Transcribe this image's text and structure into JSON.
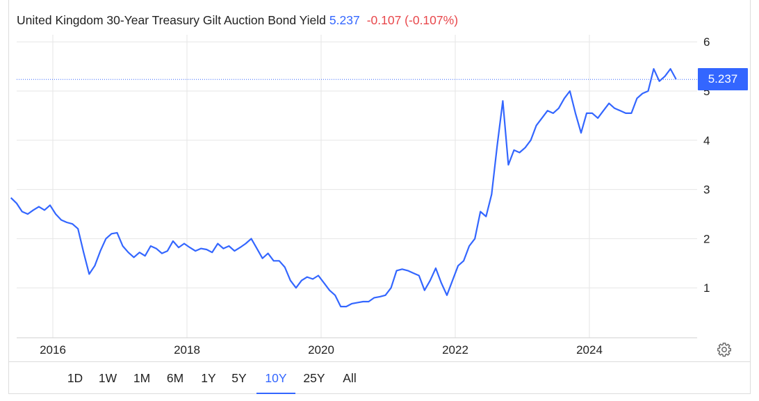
{
  "header": {
    "title": "United Kingdom 30-Year Treasury Gilt Auction Bond Yield",
    "last_value": "5.237",
    "change_text": "-0.107 (-0.107%)"
  },
  "last_badge": "5.237",
  "ranges": [
    "1D",
    "1W",
    "1M",
    "6M",
    "1Y",
    "5Y",
    "10Y",
    "25Y",
    "All"
  ],
  "active_range": "10Y",
  "colors": {
    "line": "#3366ff",
    "negative": "#e8474b",
    "grid": "#e6e6e6"
  },
  "icons": {
    "settings": "gear-icon"
  },
  "chart_data": {
    "type": "line",
    "title": "United Kingdom 30-Year Treasury Gilt Auction Bond Yield",
    "xlabel": "",
    "ylabel": "",
    "x_tick_labels": [
      "2016",
      "2018",
      "2020",
      "2022",
      "2024"
    ],
    "y_tick_labels": [
      "1",
      "2",
      "3",
      "4",
      "5",
      "6"
    ],
    "xlim": [
      "2015-06",
      "2025-05"
    ],
    "ylim": [
      0,
      6.6
    ],
    "grid": true,
    "legend": "none",
    "last_value": 5.237,
    "series": [
      {
        "values": [
          [
            "2015-06",
            2.83
          ],
          [
            "2015-07",
            2.72
          ],
          [
            "2015-08",
            2.55
          ],
          [
            "2015-09",
            2.5
          ],
          [
            "2015-10",
            2.58
          ],
          [
            "2015-11",
            2.65
          ],
          [
            "2015-12",
            2.58
          ],
          [
            "2016-01",
            2.68
          ],
          [
            "2016-02",
            2.5
          ],
          [
            "2016-03",
            2.38
          ],
          [
            "2016-04",
            2.33
          ],
          [
            "2016-05",
            2.3
          ],
          [
            "2016-06",
            2.2
          ],
          [
            "2016-07",
            1.72
          ],
          [
            "2016-08",
            1.28
          ],
          [
            "2016-09",
            1.45
          ],
          [
            "2016-10",
            1.75
          ],
          [
            "2016-11",
            2.0
          ],
          [
            "2016-12",
            2.1
          ],
          [
            "2017-01",
            2.12
          ],
          [
            "2017-02",
            1.85
          ],
          [
            "2017-03",
            1.72
          ],
          [
            "2017-04",
            1.62
          ],
          [
            "2017-05",
            1.72
          ],
          [
            "2017-06",
            1.65
          ],
          [
            "2017-07",
            1.85
          ],
          [
            "2017-08",
            1.8
          ],
          [
            "2017-09",
            1.7
          ],
          [
            "2017-10",
            1.75
          ],
          [
            "2017-11",
            1.95
          ],
          [
            "2017-12",
            1.82
          ],
          [
            "2018-01",
            1.9
          ],
          [
            "2018-02",
            1.82
          ],
          [
            "2018-03",
            1.75
          ],
          [
            "2018-04",
            1.8
          ],
          [
            "2018-05",
            1.78
          ],
          [
            "2018-06",
            1.72
          ],
          [
            "2018-07",
            1.9
          ],
          [
            "2018-08",
            1.8
          ],
          [
            "2018-09",
            1.85
          ],
          [
            "2018-10",
            1.75
          ],
          [
            "2018-11",
            1.82
          ],
          [
            "2018-12",
            1.9
          ],
          [
            "2019-01",
            2.0
          ],
          [
            "2019-02",
            1.8
          ],
          [
            "2019-03",
            1.6
          ],
          [
            "2019-04",
            1.7
          ],
          [
            "2019-05",
            1.55
          ],
          [
            "2019-06",
            1.55
          ],
          [
            "2019-07",
            1.42
          ],
          [
            "2019-08",
            1.15
          ],
          [
            "2019-09",
            1.0
          ],
          [
            "2019-10",
            1.15
          ],
          [
            "2019-11",
            1.22
          ],
          [
            "2019-12",
            1.18
          ],
          [
            "2020-01",
            1.25
          ],
          [
            "2020-02",
            1.1
          ],
          [
            "2020-03",
            0.95
          ],
          [
            "2020-04",
            0.85
          ],
          [
            "2020-05",
            0.62
          ],
          [
            "2020-06",
            0.62
          ],
          [
            "2020-07",
            0.68
          ],
          [
            "2020-08",
            0.7
          ],
          [
            "2020-09",
            0.72
          ],
          [
            "2020-10",
            0.72
          ],
          [
            "2020-11",
            0.8
          ],
          [
            "2020-12",
            0.82
          ],
          [
            "2021-01",
            0.85
          ],
          [
            "2021-02",
            1.0
          ],
          [
            "2021-03",
            1.35
          ],
          [
            "2021-04",
            1.38
          ],
          [
            "2021-05",
            1.35
          ],
          [
            "2021-06",
            1.3
          ],
          [
            "2021-07",
            1.25
          ],
          [
            "2021-08",
            0.95
          ],
          [
            "2021-09",
            1.15
          ],
          [
            "2021-10",
            1.4
          ],
          [
            "2021-11",
            1.1
          ],
          [
            "2021-12",
            0.85
          ],
          [
            "2022-01",
            1.15
          ],
          [
            "2022-02",
            1.45
          ],
          [
            "2022-03",
            1.55
          ],
          [
            "2022-04",
            1.85
          ],
          [
            "2022-05",
            2.0
          ],
          [
            "2022-06",
            2.55
          ],
          [
            "2022-07",
            2.45
          ],
          [
            "2022-08",
            2.9
          ],
          [
            "2022-09",
            3.9
          ],
          [
            "2022-10",
            4.8
          ],
          [
            "2022-11",
            3.5
          ],
          [
            "2022-12",
            3.8
          ],
          [
            "2023-01",
            3.75
          ],
          [
            "2023-02",
            3.85
          ],
          [
            "2023-03",
            4.0
          ],
          [
            "2023-04",
            4.3
          ],
          [
            "2023-05",
            4.45
          ],
          [
            "2023-06",
            4.6
          ],
          [
            "2023-07",
            4.55
          ],
          [
            "2023-08",
            4.65
          ],
          [
            "2023-09",
            4.85
          ],
          [
            "2023-10",
            5.0
          ],
          [
            "2023-11",
            4.55
          ],
          [
            "2023-12",
            4.15
          ],
          [
            "2024-01",
            4.55
          ],
          [
            "2024-02",
            4.55
          ],
          [
            "2024-03",
            4.45
          ],
          [
            "2024-04",
            4.6
          ],
          [
            "2024-05",
            4.75
          ],
          [
            "2024-06",
            4.65
          ],
          [
            "2024-07",
            4.6
          ],
          [
            "2024-08",
            4.55
          ],
          [
            "2024-09",
            4.55
          ],
          [
            "2024-10",
            4.85
          ],
          [
            "2024-11",
            4.95
          ],
          [
            "2024-12",
            5.0
          ],
          [
            "2025-01",
            5.45
          ],
          [
            "2025-02",
            5.2
          ],
          [
            "2025-03",
            5.3
          ],
          [
            "2025-04",
            5.45
          ],
          [
            "2025-05",
            5.24
          ]
        ]
      }
    ]
  }
}
